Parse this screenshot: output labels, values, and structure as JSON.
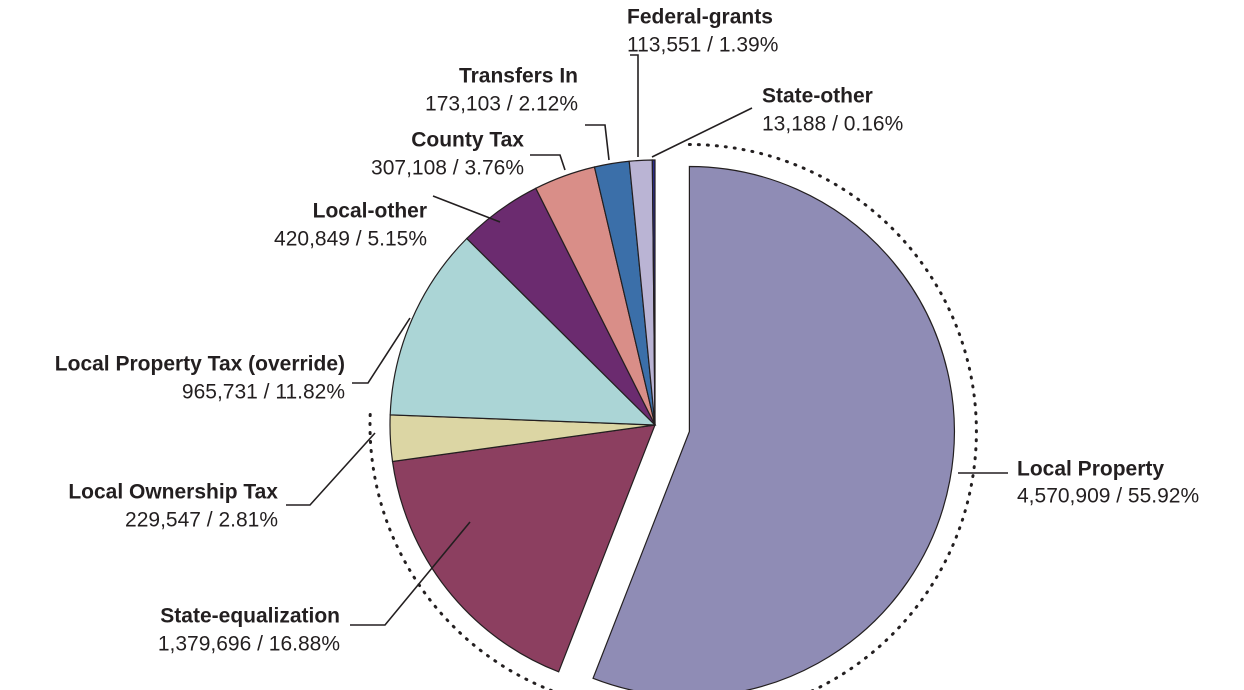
{
  "chart_data": {
    "type": "pie",
    "categories": [
      "Local Property",
      "State-equalization",
      "Local Ownership Tax",
      "Local Property Tax (override)",
      "Local-other",
      "County Tax",
      "Transfers In",
      "Federal-grants",
      "State-other"
    ],
    "values": [
      4570909,
      1379696,
      229547,
      965731,
      420849,
      307108,
      173103,
      113551,
      13188
    ],
    "value_labels": [
      "4,570,909 / 55.92%",
      "1,379,696 / 16.88%",
      "229,547 / 2.81%",
      "965,731 / 11.82%",
      "420,849 / 5.15%",
      "307,108 / 3.76%",
      "173,103 / 2.12%",
      "113,551 / 1.39%",
      "13,188 / 0.16%"
    ],
    "colors": [
      "#8f8cb5",
      "#8c3f60",
      "#dcd6a4",
      "#abd5d6",
      "#6b2b6f",
      "#d98e88",
      "#3b6fa9",
      "#bab4d4",
      "#2a2a8c"
    ],
    "exploded": [
      0
    ]
  }
}
